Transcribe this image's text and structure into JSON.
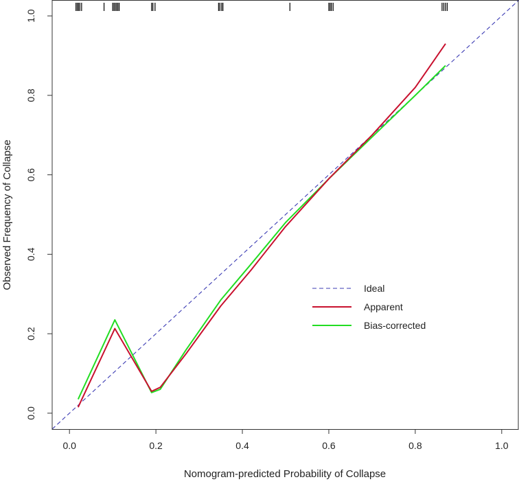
{
  "chart_data": {
    "type": "line",
    "title": "",
    "xlabel": "Nomogram-predicted Probability of Collapse",
    "ylabel": "Observed Frequency of Collapse",
    "xlim": [
      -0.04,
      1.04
    ],
    "ylim": [
      -0.04,
      1.04
    ],
    "xticks": [
      "0.0",
      "0.2",
      "0.4",
      "0.6",
      "0.8",
      "1.0"
    ],
    "yticks": [
      "0.0",
      "0.2",
      "0.4",
      "0.6",
      "0.8",
      "1.0"
    ],
    "grid": false,
    "legend_position": "center-right",
    "series": [
      {
        "name": "Ideal",
        "color": "#3b3bb3",
        "style": "dashed",
        "x": [
          -0.04,
          1.04
        ],
        "y": [
          -0.04,
          1.04
        ]
      },
      {
        "name": "Apparent",
        "color": "#c8102e",
        "style": "solid",
        "x": [
          0.02,
          0.105,
          0.19,
          0.21,
          0.27,
          0.35,
          0.42,
          0.5,
          0.6,
          0.7,
          0.8,
          0.87
        ],
        "y": [
          0.015,
          0.213,
          0.055,
          0.065,
          0.15,
          0.27,
          0.36,
          0.47,
          0.59,
          0.7,
          0.82,
          0.93
        ]
      },
      {
        "name": "Bias-corrected",
        "color": "#22dd22",
        "style": "solid",
        "x": [
          0.02,
          0.105,
          0.19,
          0.21,
          0.27,
          0.35,
          0.42,
          0.5,
          0.6,
          0.7,
          0.8,
          0.87
        ],
        "y": [
          0.035,
          0.235,
          0.052,
          0.06,
          0.16,
          0.285,
          0.375,
          0.48,
          0.59,
          0.695,
          0.8,
          0.875
        ]
      }
    ],
    "rug_x": [
      0.015,
      0.018,
      0.021,
      0.024,
      0.028,
      0.08,
      0.1,
      0.103,
      0.106,
      0.109,
      0.112,
      0.115,
      0.19,
      0.193,
      0.198,
      0.345,
      0.348,
      0.352,
      0.355,
      0.51,
      0.6,
      0.603,
      0.606,
      0.61,
      0.862,
      0.866,
      0.87,
      0.874
    ]
  }
}
